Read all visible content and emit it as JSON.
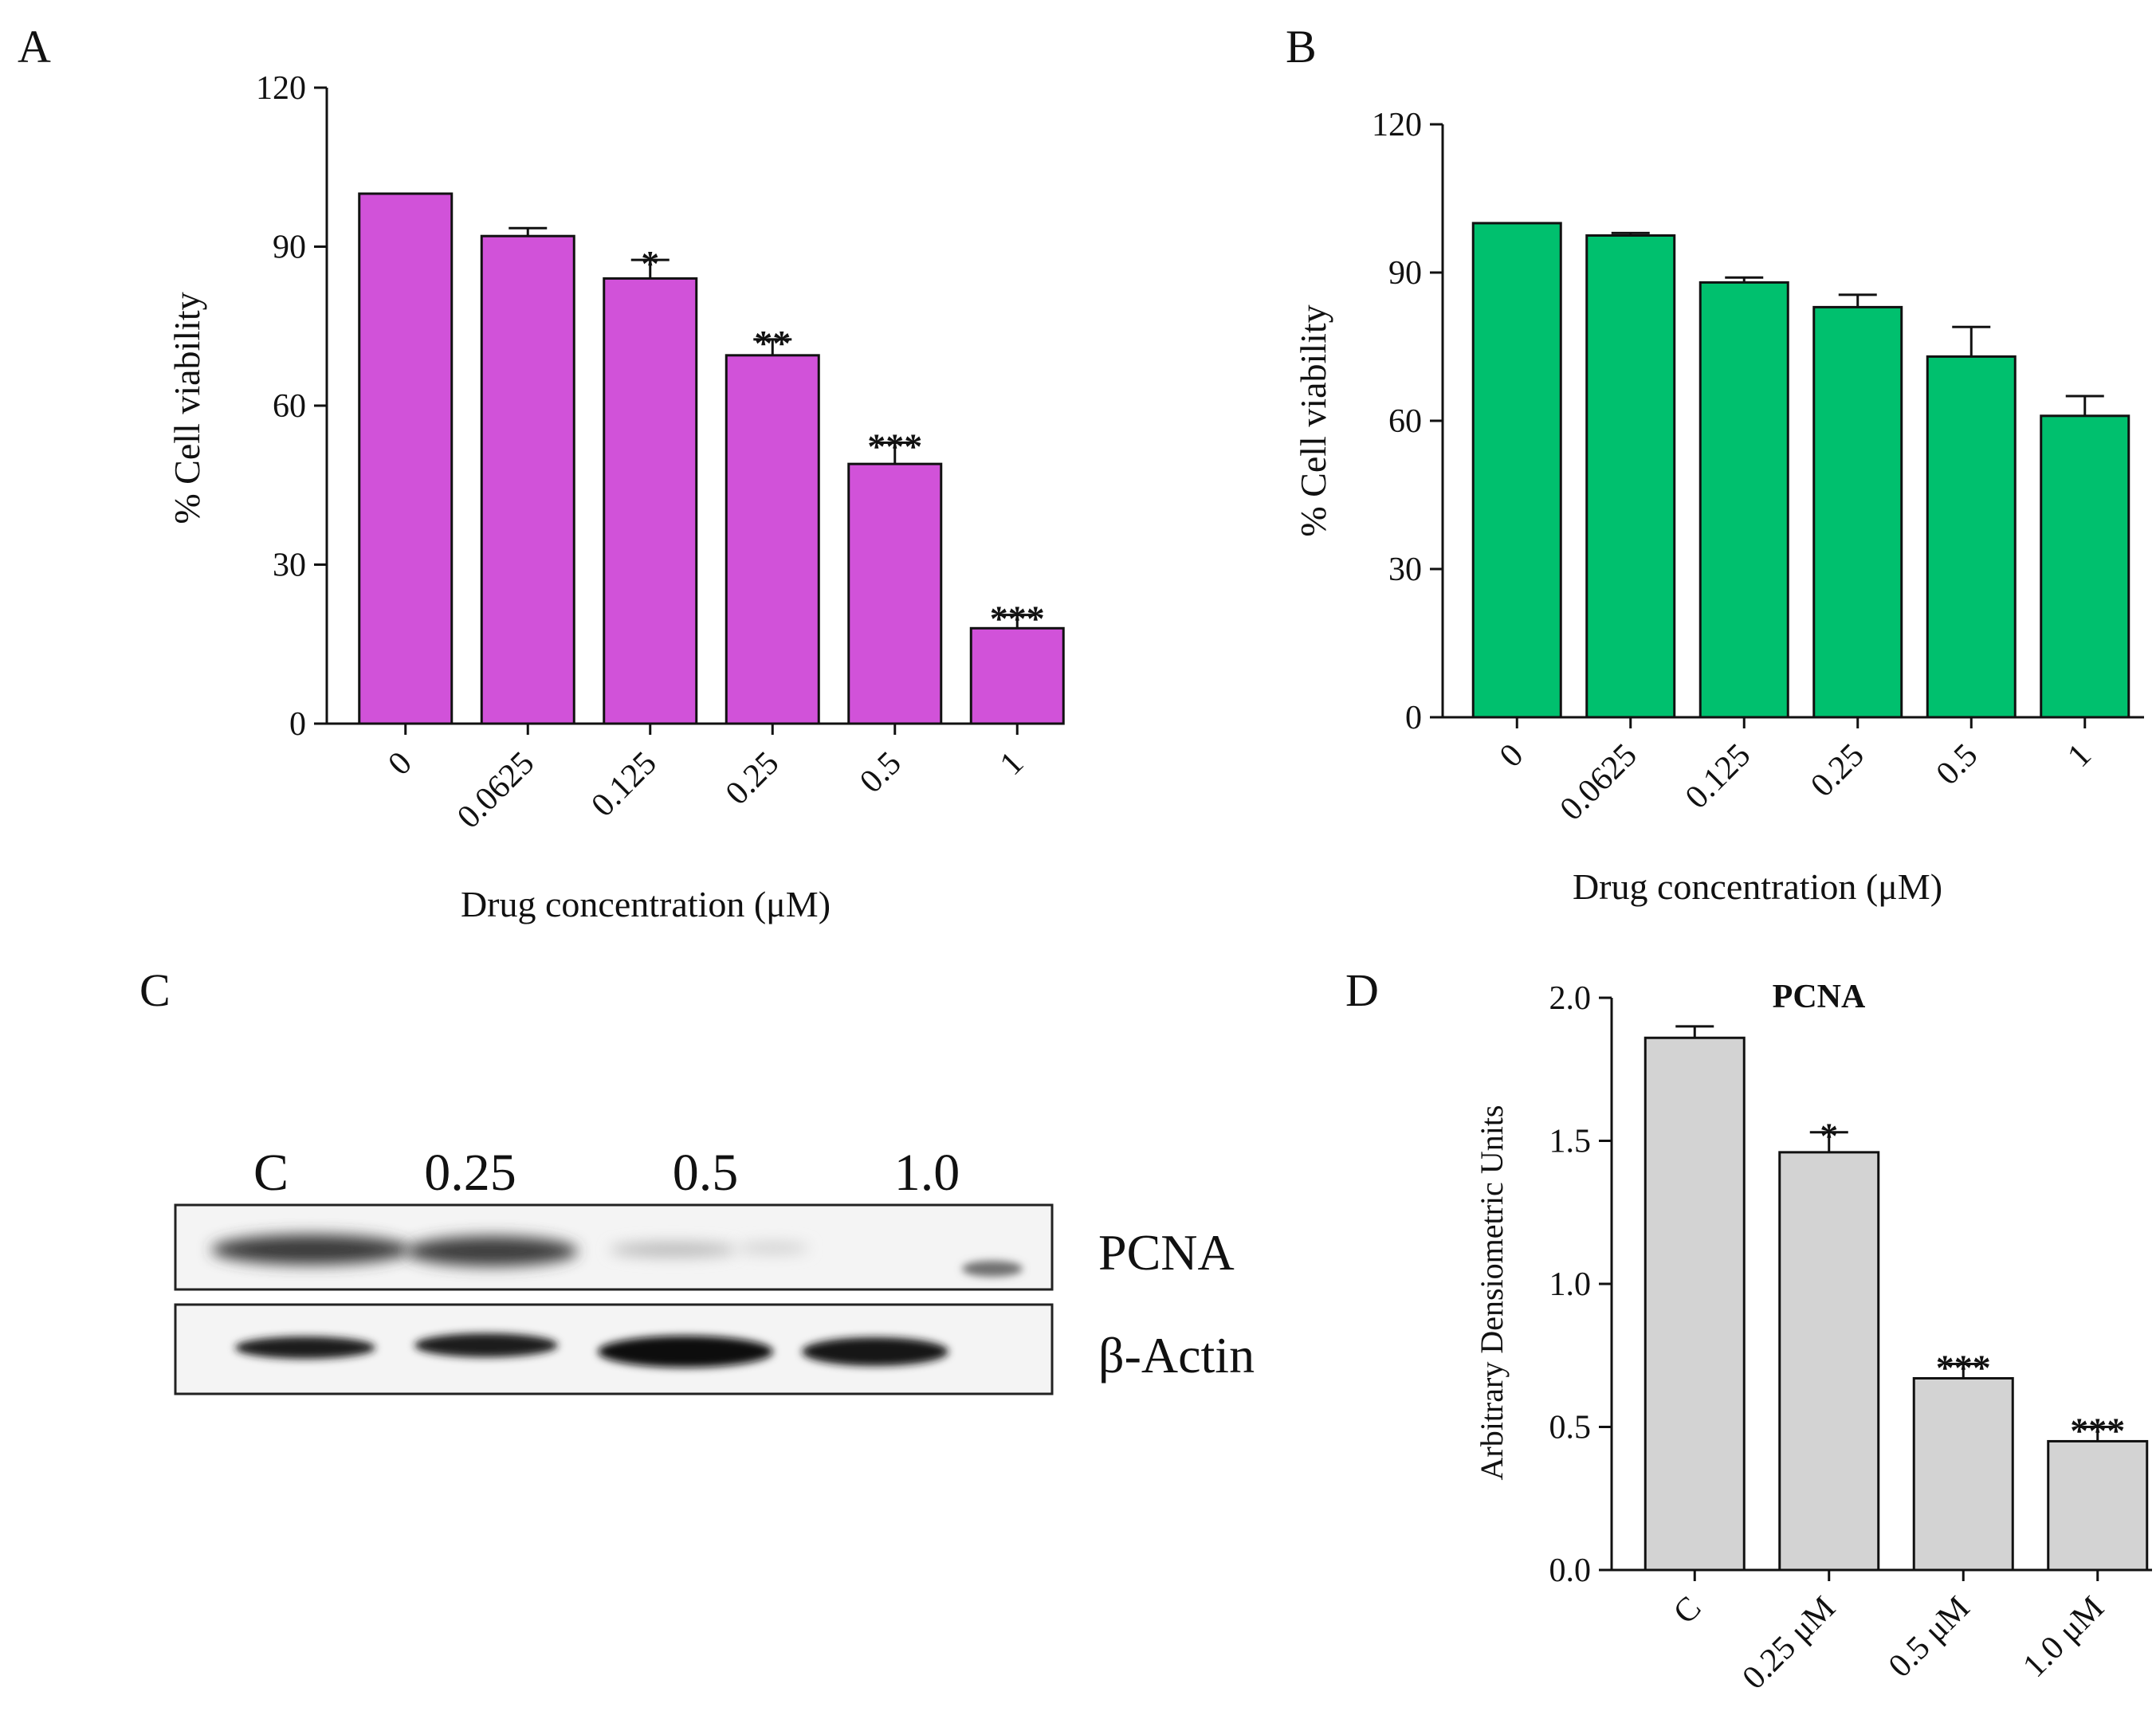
{
  "panels": {
    "A": {
      "letter": "A"
    },
    "B": {
      "letter": "B"
    },
    "C": {
      "letter": "C"
    },
    "D": {
      "letter": "D"
    }
  },
  "colors": {
    "panelA_bar": "#d152d9",
    "panelB_bar": "#00c06e",
    "panelD_bar": "#d3d3d3",
    "axis": "#111111"
  },
  "chart_data": [
    {
      "id": "A",
      "type": "bar",
      "title": "",
      "categories": [
        "0",
        "0.0625",
        "0.125",
        "0.25",
        "0.5",
        "1"
      ],
      "values": [
        100,
        92,
        84,
        69.5,
        49,
        18
      ],
      "errors": [
        0,
        1.5,
        3.5,
        3,
        4,
        2.5
      ],
      "significance": [
        "",
        "",
        "*",
        "**",
        "***",
        "***"
      ],
      "xlabel": "Drug concentration (μM)",
      "ylabel": "% Cell viability",
      "ylim": [
        0,
        120
      ],
      "yticks": [
        "0",
        "30",
        "60",
        "90",
        "120"
      ],
      "ytick_values": [
        0,
        30,
        60,
        90,
        120
      ]
    },
    {
      "id": "B",
      "type": "bar",
      "title": "",
      "categories": [
        "0",
        "0.0625",
        "0.125",
        "0.25",
        "0.5",
        "1"
      ],
      "values": [
        100,
        97.5,
        88,
        83,
        73,
        61
      ],
      "errors": [
        0,
        0.5,
        1,
        2.5,
        6,
        4
      ],
      "significance": [
        "",
        "",
        "",
        "",
        "",
        ""
      ],
      "xlabel": "Drug concentration (μM)",
      "ylabel": "% Cell viability",
      "ylim": [
        0,
        120
      ],
      "yticks": [
        "0",
        "30",
        "60",
        "90",
        "120"
      ],
      "ytick_values": [
        0,
        30,
        60,
        90,
        120
      ]
    },
    {
      "id": "D",
      "type": "bar",
      "title": "PCNA",
      "categories": [
        "C",
        "0.25 μM",
        "0.5 μM",
        "1.0 μM"
      ],
      "values": [
        1.86,
        1.46,
        0.67,
        0.45
      ],
      "errors": [
        0.04,
        0.07,
        0.05,
        0.05
      ],
      "significance": [
        "",
        "*",
        "***",
        "***"
      ],
      "xlabel": "",
      "ylabel": "Arbitrary Densiometric Units",
      "ylim": [
        0,
        2.0
      ],
      "yticks": [
        "0.0",
        "0.5",
        "1.0",
        "1.5",
        "2.0"
      ],
      "ytick_values": [
        0,
        0.5,
        1.0,
        1.5,
        2.0
      ]
    }
  ],
  "blot": {
    "lanes": [
      "C",
      "0.25",
      "0.5",
      "1.0"
    ],
    "rows": [
      "PCNA",
      "β-Actin"
    ]
  }
}
